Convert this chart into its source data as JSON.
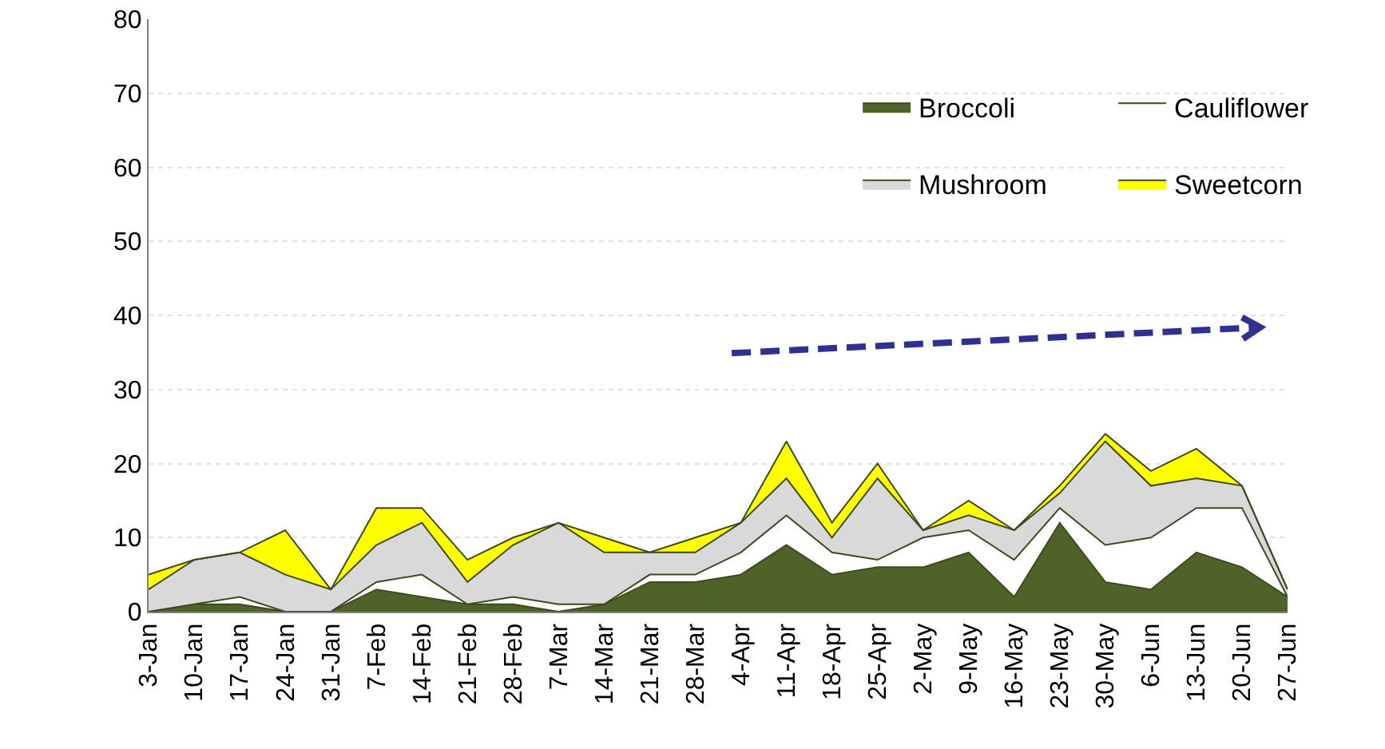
{
  "chart_data": {
    "type": "area",
    "stacked": true,
    "categories": [
      "3-Jan",
      "10-Jan",
      "17-Jan",
      "24-Jan",
      "31-Jan",
      "7-Feb",
      "14-Feb",
      "21-Feb",
      "28-Feb",
      "7-Mar",
      "14-Mar",
      "21-Mar",
      "28-Mar",
      "4-Apr",
      "11-Apr",
      "18-Apr",
      "25-Apr",
      "2-May",
      "9-May",
      "16-May",
      "23-May",
      "30-May",
      "6-Jun",
      "13-Jun",
      "20-Jun",
      "27-Jun"
    ],
    "series": [
      {
        "name": "Broccoli",
        "color": "#4f6228",
        "values": [
          0,
          1,
          1,
          0,
          0,
          3,
          2,
          1,
          1,
          0,
          1,
          4,
          4,
          5,
          9,
          5,
          6,
          6,
          8,
          2,
          12,
          4,
          3,
          8,
          6,
          2
        ]
      },
      {
        "name": "Cauliflower",
        "color": "#ffffff",
        "values": [
          0,
          0,
          1,
          0,
          0,
          1,
          3,
          0,
          1,
          1,
          0,
          1,
          1,
          3,
          4,
          3,
          1,
          4,
          3,
          5,
          2,
          5,
          7,
          6,
          8,
          0
        ]
      },
      {
        "name": "Mushroom",
        "color": "#d9d9d9",
        "values": [
          3,
          6,
          6,
          5,
          3,
          5,
          7,
          3,
          7,
          11,
          7,
          3,
          3,
          4,
          5,
          2,
          11,
          1,
          2,
          4,
          2,
          14,
          7,
          4,
          3,
          1
        ]
      },
      {
        "name": "Sweetcorn",
        "color": "#ffff00",
        "values": [
          2,
          0,
          0,
          6,
          0,
          5,
          2,
          3,
          1,
          0,
          2,
          0,
          2,
          0,
          5,
          2,
          2,
          0,
          2,
          0,
          1,
          1,
          2,
          4,
          0,
          0
        ]
      }
    ],
    "ylim": [
      0,
      80
    ],
    "yticks": [
      0,
      10,
      20,
      30,
      40,
      50,
      60,
      70,
      80
    ],
    "grid": "y",
    "legend": "top right"
  }
}
